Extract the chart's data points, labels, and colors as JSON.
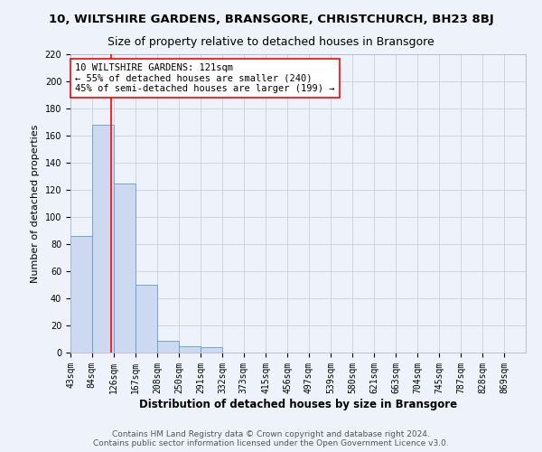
{
  "title": "10, WILTSHIRE GARDENS, BRANSGORE, CHRISTCHURCH, BH23 8BJ",
  "subtitle": "Size of property relative to detached houses in Bransgore",
  "xlabel": "Distribution of detached houses by size in Bransgore",
  "ylabel": "Number of detached properties",
  "bin_edges": [
    43,
    84,
    126,
    167,
    208,
    250,
    291,
    332,
    373,
    415,
    456,
    497,
    539,
    580,
    621,
    663,
    704,
    745,
    787,
    828,
    869
  ],
  "bar_heights": [
    86,
    168,
    125,
    50,
    9,
    5,
    4,
    0,
    0,
    0,
    0,
    0,
    0,
    0,
    0,
    0,
    0,
    0,
    0,
    0
  ],
  "bar_color": "#ccd9f0",
  "bar_edgecolor": "#6699cc",
  "property_size": 121,
  "annotation_text": "10 WILTSHIRE GARDENS: 121sqm\n← 55% of detached houses are smaller (240)\n45% of semi-detached houses are larger (199) →",
  "annotation_box_color": "white",
  "annotation_box_edgecolor": "red",
  "vline_color": "red",
  "ylim": [
    0,
    220
  ],
  "yticks": [
    0,
    20,
    40,
    60,
    80,
    100,
    120,
    140,
    160,
    180,
    200,
    220
  ],
  "footer_text": "Contains HM Land Registry data © Crown copyright and database right 2024.\nContains public sector information licensed under the Open Government Licence v3.0.",
  "title_fontsize": 9.5,
  "subtitle_fontsize": 9,
  "xlabel_fontsize": 8.5,
  "ylabel_fontsize": 8,
  "tick_fontsize": 7,
  "footer_fontsize": 6.5,
  "annotation_fontsize": 7.5,
  "background_color": "#eef2fa"
}
